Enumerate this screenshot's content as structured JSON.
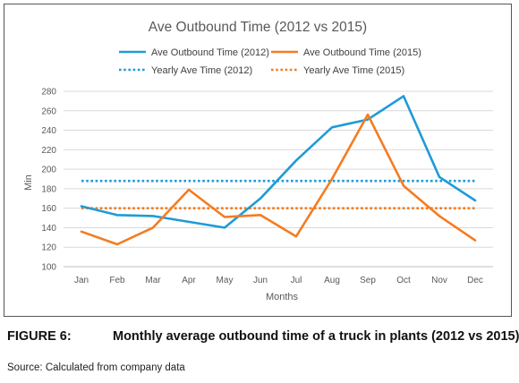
{
  "caption": {
    "label": "FIGURE 6:",
    "text": "Monthly average outbound time of a truck in plants (2012 vs 2015)"
  },
  "source": "Source: Calculated from company data",
  "chart_data": {
    "type": "line",
    "title": "Ave Outbound Time (2012 vs 2015)",
    "xlabel": "Months",
    "ylabel": "Min",
    "categories": [
      "Jan",
      "Feb",
      "Mar",
      "Apr",
      "May",
      "Jun",
      "Jul",
      "Aug",
      "Sep",
      "Oct",
      "Nov",
      "Dec"
    ],
    "ylim": [
      100,
      280
    ],
    "yticks": [
      100,
      120,
      140,
      160,
      180,
      200,
      220,
      240,
      260,
      280
    ],
    "grid": "horizontal",
    "legend_position": "top",
    "series": [
      {
        "name": "Ave Outbound Time (2012)",
        "style": "solid",
        "color": "#1f9bd7",
        "values": [
          162,
          153,
          152,
          146,
          140,
          170,
          209,
          243,
          251,
          275,
          192,
          168
        ]
      },
      {
        "name": "Ave Outbound Time (2015)",
        "style": "solid",
        "color": "#f47c20",
        "values": [
          136,
          123,
          140,
          179,
          151,
          153,
          131,
          190,
          256,
          183,
          152,
          127
        ]
      },
      {
        "name": "Yearly Ave Time (2012)",
        "style": "dotted",
        "color": "#1f9bd7",
        "values": [
          188,
          188,
          188,
          188,
          188,
          188,
          188,
          188,
          188,
          188,
          188,
          188
        ]
      },
      {
        "name": "Yearly Ave Time (2015)",
        "style": "dotted",
        "color": "#f47c20",
        "values": [
          160,
          160,
          160,
          160,
          160,
          160,
          160,
          160,
          160,
          160,
          160,
          160
        ]
      }
    ]
  }
}
